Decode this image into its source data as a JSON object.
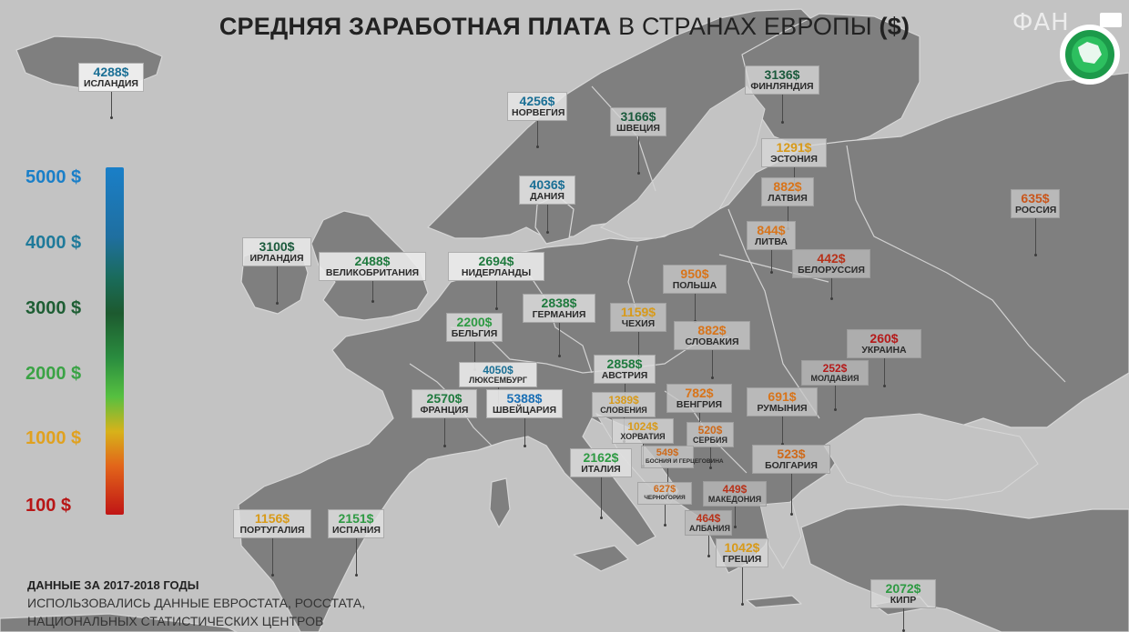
{
  "title": {
    "bold": "СРЕДНЯЯ ЗАРАБОТНАЯ ПЛАТА",
    "light": "В СТРАНАХ ЕВРОПЫ",
    "unit": "($)"
  },
  "logo": {
    "text": "ФАН"
  },
  "scale": {
    "labels": [
      "5000 $",
      "4000 $",
      "3000 $",
      "2000 $",
      "1000 $",
      "100 $"
    ],
    "colors": [
      "#1a7fc8",
      "#1f7a9a",
      "#1e5e34",
      "#3aa345",
      "#e0a11f",
      "#b81616"
    ]
  },
  "footnote": {
    "line1": "ДАННЫЕ ЗА 2017-2018 ГОДЫ",
    "line2": "ИСПОЛЬЗОВАЛИСЬ ДАННЫЕ ЕВРОСТАТА, РОССТАТА,",
    "line3": "НАЦИОНАЛЬНЫХ СТАТИСТИЧЕСКИХ ЦЕНТРОВ"
  },
  "countries": [
    {
      "name": "ИСЛАНДИЯ",
      "value": "4288$",
      "salary": 4288,
      "color": "#1a6f95"
    },
    {
      "name": "НОРВЕГИЯ",
      "value": "4256$",
      "salary": 4256,
      "color": "#1a6f95"
    },
    {
      "name": "ШВЕЦИЯ",
      "value": "3166$",
      "salary": 3166,
      "color": "#1b5a3c"
    },
    {
      "name": "ФИНЛЯНДИЯ",
      "value": "3136$",
      "salary": 3136,
      "color": "#1b5a3c"
    },
    {
      "name": "ЭСТОНИЯ",
      "value": "1291$",
      "salary": 1291,
      "color": "#d89a19"
    },
    {
      "name": "ЛАТВИЯ",
      "value": "882$",
      "salary": 882,
      "color": "#d8741a"
    },
    {
      "name": "РОССИЯ",
      "value": "635$",
      "salary": 635,
      "color": "#c9551a"
    },
    {
      "name": "ДАНИЯ",
      "value": "4036$",
      "salary": 4036,
      "color": "#1a6f95"
    },
    {
      "name": "ЛИТВА",
      "value": "844$",
      "salary": 844,
      "color": "#d8741a"
    },
    {
      "name": "БЕЛОРУССИЯ",
      "value": "442$",
      "salary": 442,
      "color": "#b8321a"
    },
    {
      "name": "ИРЛАНДИЯ",
      "value": "3100$",
      "salary": 3100,
      "color": "#1b5a3c"
    },
    {
      "name": "ВЕЛИКОБРИТАНИЯ",
      "value": "2488$",
      "salary": 2488,
      "color": "#1f7a3e"
    },
    {
      "name": "НИДЕРЛАНДЫ",
      "value": "2694$",
      "salary": 2694,
      "color": "#1f7a3e"
    },
    {
      "name": "ПОЛЬША",
      "value": "950$",
      "salary": 950,
      "color": "#d8741a"
    },
    {
      "name": "ГЕРМАНИЯ",
      "value": "2838$",
      "salary": 2838,
      "color": "#1f7a3e"
    },
    {
      "name": "ЧЕХИЯ",
      "value": "1159$",
      "salary": 1159,
      "color": "#d89a19"
    },
    {
      "name": "БЕЛЬГИЯ",
      "value": "2200$",
      "salary": 2200,
      "color": "#2e9a43"
    },
    {
      "name": "СЛОВАКИЯ",
      "value": "882$",
      "salary": 882,
      "color": "#d8741a"
    },
    {
      "name": "УКРАИНА",
      "value": "260$",
      "salary": 260,
      "color": "#b51a1a"
    },
    {
      "name": "АВСТРИЯ",
      "value": "2858$",
      "salary": 2858,
      "color": "#1f7a3e"
    },
    {
      "name": "МОЛДАВИЯ",
      "value": "252$",
      "salary": 252,
      "color": "#b51a1a"
    },
    {
      "name": "ЛЮКСЕМБУРГ",
      "value": "4050$",
      "salary": 4050,
      "color": "#1a6f95"
    },
    {
      "name": "ФРАНЦИЯ",
      "value": "2570$",
      "salary": 2570,
      "color": "#1f7a3e"
    },
    {
      "name": "ШВЕЙЦАРИЯ",
      "value": "5388$",
      "salary": 5388,
      "color": "#1a6fb5"
    },
    {
      "name": "СЛОВЕНИЯ",
      "value": "1389$",
      "salary": 1389,
      "color": "#d89a19"
    },
    {
      "name": "ВЕНГРИЯ",
      "value": "782$",
      "salary": 782,
      "color": "#d8741a"
    },
    {
      "name": "РУМЫНИЯ",
      "value": "691$",
      "salary": 691,
      "color": "#d8741a"
    },
    {
      "name": "ХОРВАТИЯ",
      "value": "1024$",
      "salary": 1024,
      "color": "#d89a19"
    },
    {
      "name": "СЕРБИЯ",
      "value": "520$",
      "salary": 520,
      "color": "#cf6a1a"
    },
    {
      "name": "БОСНИЯ И ГЕРЦЕГОВИНА",
      "value": "549$",
      "salary": 549,
      "color": "#cf6a1a"
    },
    {
      "name": "БОЛГАРИЯ",
      "value": "523$",
      "salary": 523,
      "color": "#cf6a1a"
    },
    {
      "name": "ИТАЛИЯ",
      "value": "2162$",
      "salary": 2162,
      "color": "#2e9a43"
    },
    {
      "name": "ЧЕРНОГОРИЯ",
      "value": "627$",
      "salary": 627,
      "color": "#cf6a1a"
    },
    {
      "name": "МАКЕДОНИЯ",
      "value": "449$",
      "salary": 449,
      "color": "#b8321a"
    },
    {
      "name": "АЛБАНИЯ",
      "value": "464$",
      "salary": 464,
      "color": "#b8321a"
    },
    {
      "name": "ПОРТУГАЛИЯ",
      "value": "1156$",
      "salary": 1156,
      "color": "#d89a19"
    },
    {
      "name": "ИСПАНИЯ",
      "value": "2151$",
      "salary": 2151,
      "color": "#2e9a43"
    },
    {
      "name": "ГРЕЦИЯ",
      "value": "1042$",
      "salary": 1042,
      "color": "#d89a19"
    },
    {
      "name": "КИПР",
      "value": "2072$",
      "salary": 2072,
      "color": "#2e9a43"
    }
  ]
}
